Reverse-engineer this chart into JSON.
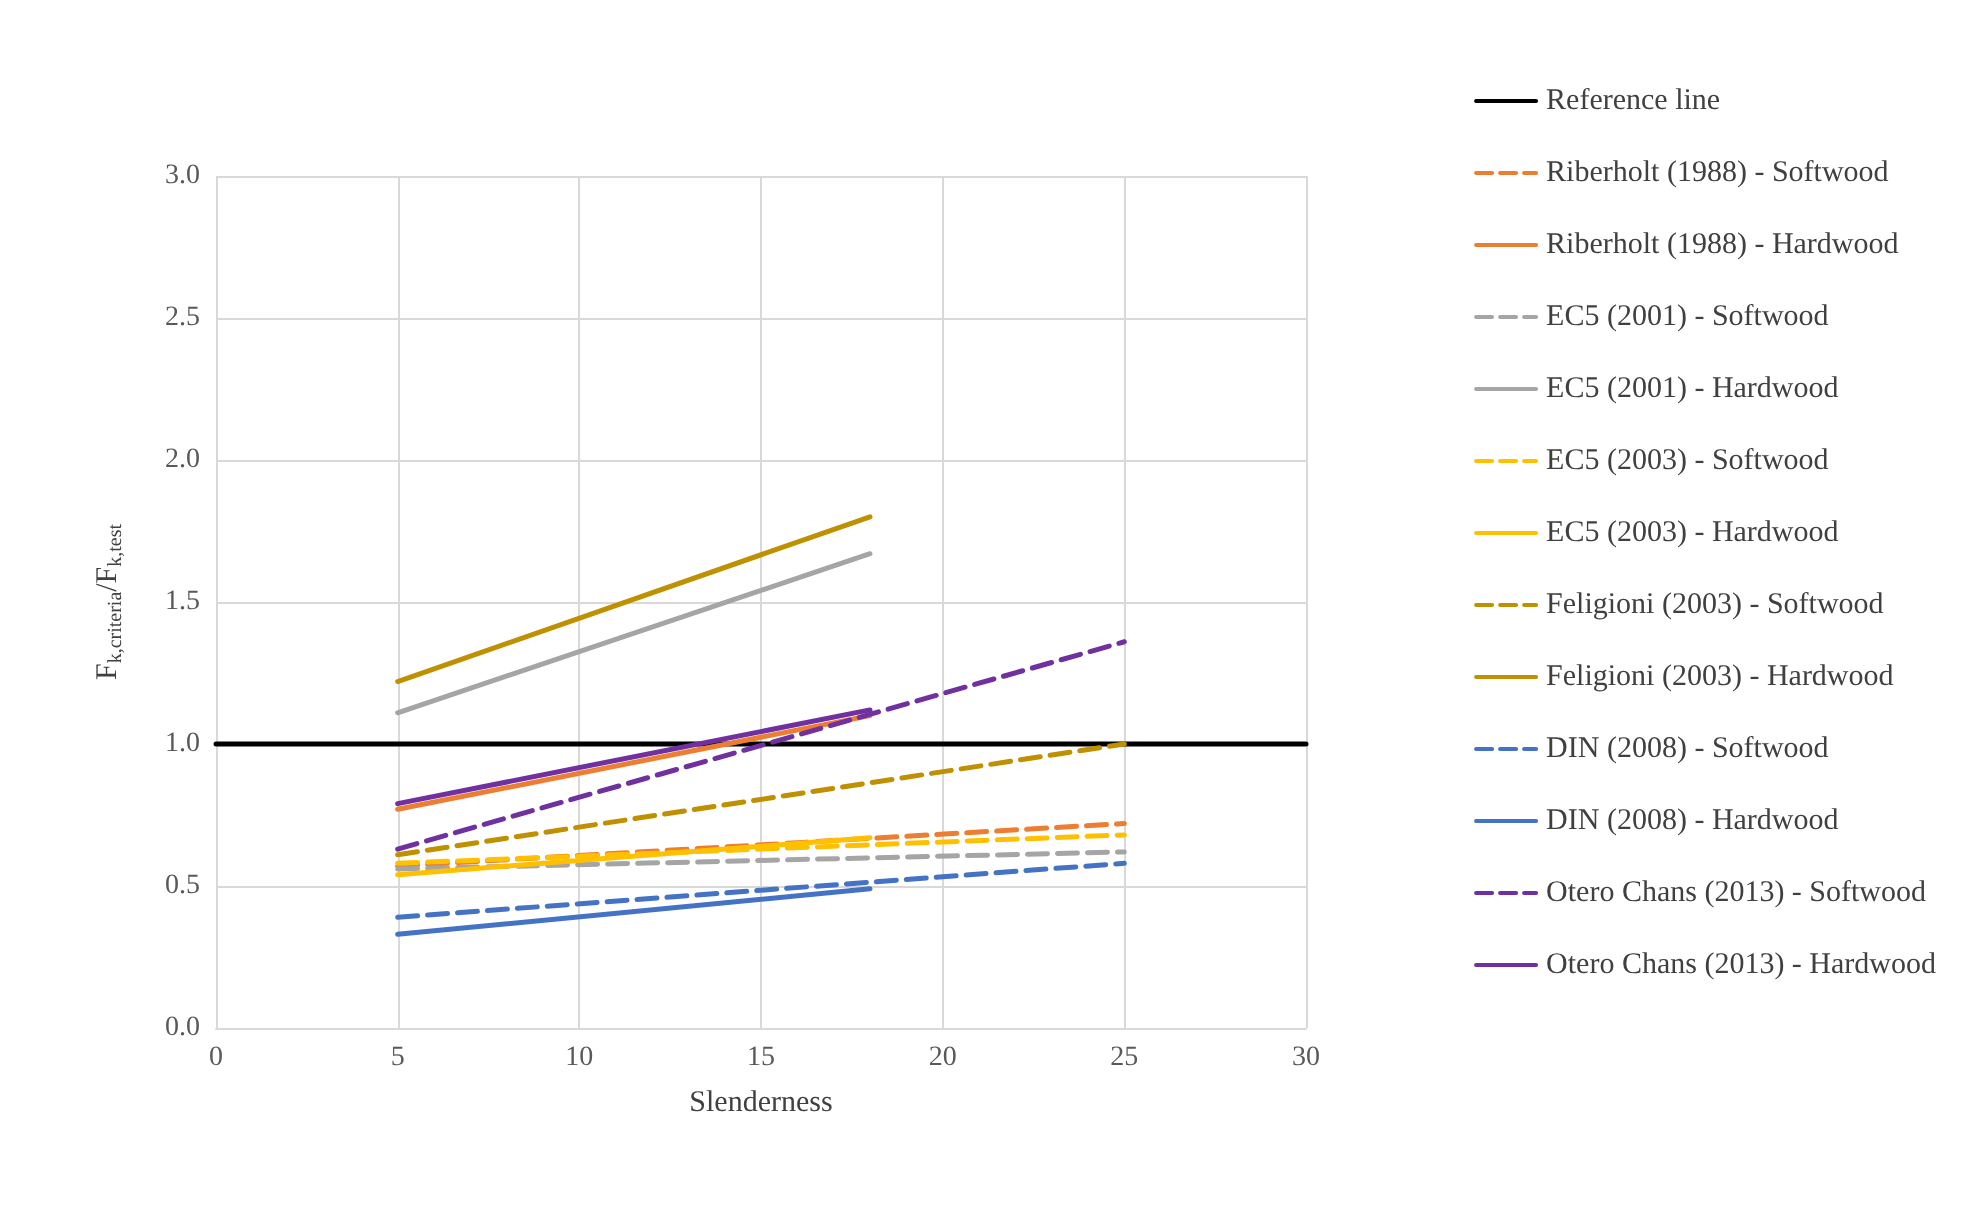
{
  "chart_data": {
    "type": "line",
    "xlabel": "Slenderness",
    "ylabel": "F$_{k,criteria}$/F$_{k,test}$",
    "xlim": [
      0,
      30
    ],
    "xticks": [
      0,
      5,
      10,
      15,
      20,
      25,
      30
    ],
    "ylim": [
      0,
      3
    ],
    "yticks": [
      {
        "value": 0,
        "label": "0.0"
      },
      {
        "value": 0.5,
        "label": "0.5"
      },
      {
        "value": 1,
        "label": "1.0"
      },
      {
        "value": 1.5,
        "label": "1.5"
      },
      {
        "value": 2,
        "label": "2.0"
      },
      {
        "value": 2.5,
        "label": "2.5"
      },
      {
        "value": 3,
        "label": "3.0"
      }
    ],
    "grid": true,
    "legend": "right",
    "marker": "none",
    "series": [
      {
        "name": "Reference line",
        "color": "#000000",
        "line_style": "solid",
        "x": [
          0,
          30
        ],
        "values": [
          1,
          1
        ]
      },
      {
        "name": "Riberholt (1988) - Softwood",
        "color": "#ed7d31",
        "line_style": "dashed",
        "x": [
          5,
          25
        ],
        "values": [
          0.57,
          0.72
        ]
      },
      {
        "name": "Riberholt (1988) - Hardwood",
        "color": "#ed7d31",
        "line_style": "solid",
        "x": [
          5,
          18
        ],
        "values": [
          0.77,
          1.1
        ]
      },
      {
        "name": "EC5 (2001) - Softwood",
        "color": "#a5a5a5",
        "line_style": "dashed",
        "x": [
          5,
          25
        ],
        "values": [
          0.56,
          0.62
        ]
      },
      {
        "name": "EC5 (2001) - Hardwood",
        "color": "#a5a5a5",
        "line_style": "solid",
        "x": [
          5,
          18
        ],
        "values": [
          1.11,
          1.67
        ]
      },
      {
        "name": "EC5 (2003) - Softwood",
        "color": "#ffc000",
        "line_style": "dashed",
        "x": [
          5,
          25
        ],
        "values": [
          0.58,
          0.68
        ]
      },
      {
        "name": "EC5 (2003) - Hardwood",
        "color": "#ffc000",
        "line_style": "solid",
        "x": [
          5,
          18
        ],
        "values": [
          0.54,
          0.67
        ]
      },
      {
        "name": "Feligioni (2003) - Softwood",
        "color": "#bf9000",
        "line_style": "dashed",
        "x": [
          5,
          25
        ],
        "values": [
          0.61,
          1.0
        ]
      },
      {
        "name": "Feligioni (2003) - Hardwood",
        "color": "#bf9000",
        "line_style": "solid",
        "x": [
          5,
          18
        ],
        "values": [
          1.22,
          1.8
        ]
      },
      {
        "name": "DIN (2008) - Softwood",
        "color": "#4472c4",
        "line_style": "dashed",
        "x": [
          5,
          25
        ],
        "values": [
          0.39,
          0.58
        ]
      },
      {
        "name": "DIN (2008) - Hardwood",
        "color": "#4472c4",
        "line_style": "solid",
        "x": [
          5,
          18
        ],
        "values": [
          0.33,
          0.49
        ]
      },
      {
        "name": "Otero Chans (2013) - Softwood",
        "color": "#7030a0",
        "line_style": "dashed",
        "x": [
          5,
          25
        ],
        "values": [
          0.63,
          1.36
        ]
      },
      {
        "name": "Otero Chans (2013) - Hardwood",
        "color": "#7030a0",
        "line_style": "solid",
        "x": [
          5,
          18
        ],
        "values": [
          0.79,
          1.12
        ]
      }
    ]
  }
}
